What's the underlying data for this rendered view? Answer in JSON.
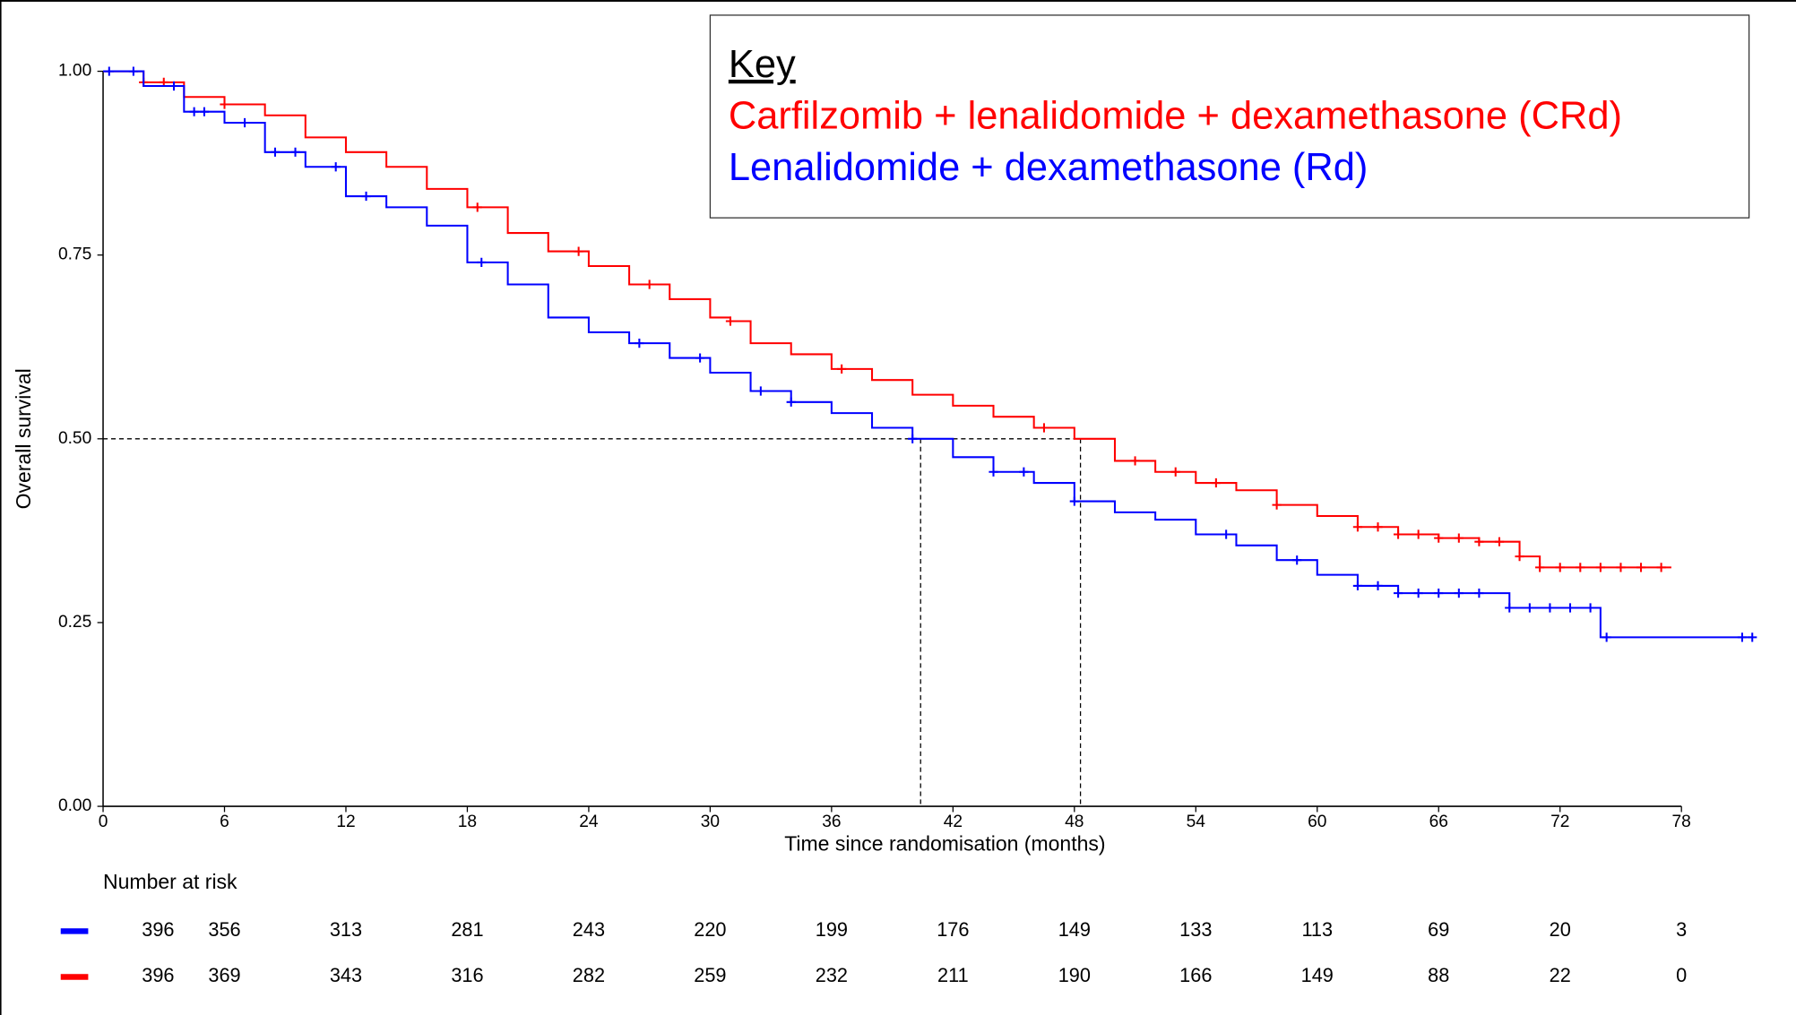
{
  "chart_data": {
    "type": "line",
    "step": true,
    "x_label": "Time since randomisation (months)",
    "y_label": "Overall survival",
    "legend_title": "Key",
    "xlim": [
      0,
      78
    ],
    "xticks": [
      0,
      6,
      12,
      18,
      24,
      30,
      36,
      42,
      48,
      54,
      60,
      66,
      72,
      78
    ],
    "ylim": [
      0,
      1
    ],
    "yticks": [
      {
        "value": 0,
        "label": "0.00"
      },
      0.25,
      {
        "value": 0.5,
        "label": "0.50"
      },
      0.75,
      {
        "value": 1,
        "label": "1.00"
      }
    ],
    "median_lines": {
      "y": 0.5,
      "x": [
        40.4,
        48.3
      ]
    },
    "series": [
      {
        "name": "Carfilzomib + lenalidomide + dexamethasone (CRd)",
        "color": "#ff0000",
        "x": [
          0,
          2,
          4,
          6,
          8,
          10,
          12,
          14,
          16,
          18,
          20,
          22,
          24,
          26,
          28,
          30,
          31,
          32,
          34,
          36,
          38,
          40,
          42,
          44,
          46,
          48,
          50,
          52,
          54,
          56,
          58,
          60,
          62,
          64,
          66,
          68,
          70,
          71,
          77.5
        ],
        "values": [
          1,
          0.985,
          0.965,
          0.955,
          0.94,
          0.91,
          0.89,
          0.87,
          0.84,
          0.815,
          0.78,
          0.755,
          0.735,
          0.71,
          0.69,
          0.665,
          0.66,
          0.63,
          0.615,
          0.595,
          0.58,
          0.56,
          0.545,
          0.53,
          0.515,
          0.5,
          0.47,
          0.455,
          0.44,
          0.43,
          0.41,
          0.395,
          0.38,
          0.37,
          0.365,
          0.36,
          0.34,
          0.325,
          0.325
        ],
        "censored_x": [
          2,
          3,
          6,
          18.5,
          23.5,
          27,
          31,
          36.5,
          46.5,
          51,
          53,
          55,
          58,
          62,
          63,
          64,
          65,
          66,
          67,
          68,
          69,
          70,
          71,
          72,
          73,
          74,
          75,
          76,
          77
        ]
      },
      {
        "name": "Lenalidomide + dexamethasone (Rd)",
        "color": "#0000ff",
        "x": [
          0,
          2,
          4,
          6,
          8,
          10,
          12,
          14,
          16,
          18,
          20,
          22,
          24,
          26,
          28,
          30,
          32,
          34,
          36,
          38,
          40,
          42,
          44,
          46,
          48,
          50,
          52,
          54,
          56,
          58,
          60,
          62,
          64,
          66,
          68,
          69.5,
          74,
          74,
          81.5
        ],
        "values": [
          1,
          0.98,
          0.945,
          0.93,
          0.89,
          0.87,
          0.83,
          0.815,
          0.79,
          0.74,
          0.71,
          0.665,
          0.645,
          0.63,
          0.61,
          0.59,
          0.565,
          0.55,
          0.535,
          0.515,
          0.5,
          0.475,
          0.455,
          0.44,
          0.415,
          0.4,
          0.39,
          0.37,
          0.355,
          0.335,
          0.315,
          0.3,
          0.29,
          0.29,
          0.29,
          0.27,
          0.27,
          0.23,
          0.23
        ],
        "censored_x": [
          0.3,
          1.5,
          3.5,
          4.5,
          5,
          7,
          8.5,
          9.5,
          11.5,
          13,
          18.7,
          26.5,
          29.5,
          32.5,
          34,
          40,
          44,
          45.5,
          48,
          55.5,
          59,
          62,
          63,
          64,
          65,
          66,
          67,
          68,
          69.5,
          70.5,
          71.5,
          72.5,
          73.5,
          74.3,
          81,
          81.5
        ]
      }
    ],
    "risk_table": {
      "title": "Number at risk",
      "rows": [
        {
          "color": "#0000ff",
          "counts": [
            396,
            356,
            313,
            281,
            243,
            220,
            199,
            176,
            149,
            133,
            113,
            69,
            20,
            3
          ]
        },
        {
          "color": "#ff0000",
          "counts": [
            396,
            369,
            343,
            316,
            282,
            259,
            232,
            211,
            190,
            166,
            149,
            88,
            22,
            0
          ]
        }
      ]
    }
  }
}
